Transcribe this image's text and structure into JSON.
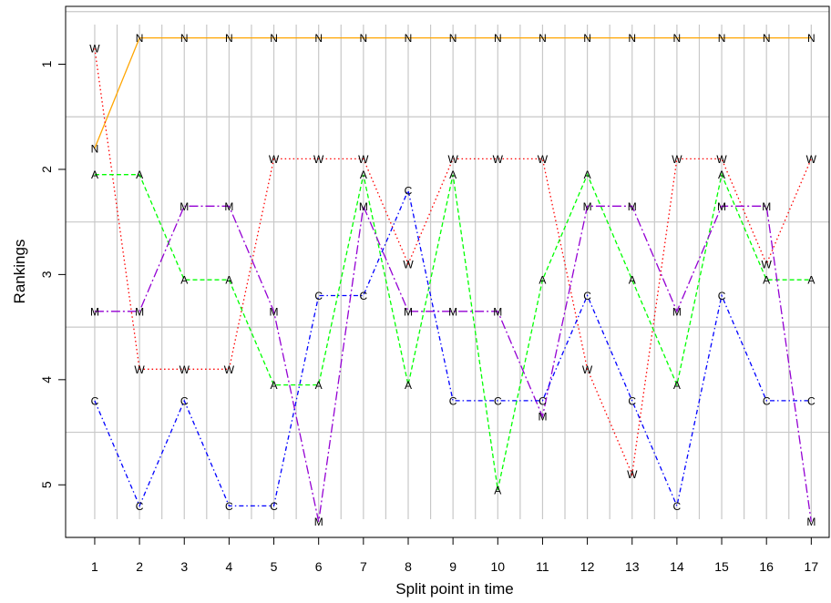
{
  "chart_data": {
    "type": "line",
    "xlabel": "Split point in time",
    "ylabel": "Rankings",
    "x": [
      1,
      2,
      3,
      4,
      5,
      6,
      7,
      8,
      9,
      10,
      11,
      12,
      13,
      14,
      15,
      16,
      17
    ],
    "xlim": [
      0.35,
      17.4
    ],
    "ylim": [
      5.5,
      0.45
    ],
    "y_reversed": true,
    "y_ticks": [
      1,
      2,
      3,
      4,
      5
    ],
    "grid": true,
    "series": [
      {
        "marker": "N",
        "color": "#ffa500",
        "linestyle": "solid",
        "y": [
          1.8,
          0.75,
          0.75,
          0.75,
          0.75,
          0.75,
          0.75,
          0.75,
          0.75,
          0.75,
          0.75,
          0.75,
          0.75,
          0.75,
          0.75,
          0.75,
          0.75
        ]
      },
      {
        "marker": "W",
        "color": "#ff0000",
        "linestyle": "dotted",
        "y": [
          0.85,
          3.9,
          3.9,
          3.9,
          1.9,
          1.9,
          1.9,
          2.9,
          1.9,
          1.9,
          1.9,
          3.9,
          4.9,
          1.9,
          1.9,
          2.9,
          1.9
        ]
      },
      {
        "marker": "A",
        "color": "#00ff00",
        "linestyle": "dashed",
        "y": [
          2.05,
          2.05,
          3.05,
          3.05,
          4.05,
          4.05,
          2.05,
          4.05,
          2.05,
          5.05,
          3.05,
          2.05,
          3.05,
          4.05,
          2.05,
          3.05,
          3.05
        ]
      },
      {
        "marker": "M",
        "color": "#9400d3",
        "linestyle": "longdash",
        "y": [
          3.35,
          3.35,
          2.35,
          2.35,
          3.35,
          5.35,
          2.35,
          3.35,
          3.35,
          3.35,
          4.35,
          2.35,
          2.35,
          3.35,
          2.35,
          2.35,
          5.35
        ]
      },
      {
        "marker": "C",
        "color": "#0000ff",
        "linestyle": "dotdash",
        "y": [
          4.2,
          5.2,
          4.2,
          5.2,
          5.2,
          3.2,
          3.2,
          2.2,
          4.2,
          4.2,
          4.2,
          3.2,
          4.2,
          5.2,
          3.2,
          4.2,
          4.2
        ]
      }
    ]
  }
}
